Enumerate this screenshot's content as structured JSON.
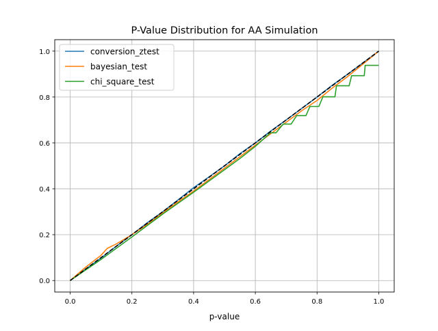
{
  "chart_data": {
    "type": "line",
    "title": "P-Value Distribution for AA Simulation",
    "xlabel": "p-value",
    "ylabel": "",
    "xlim": [
      -0.05,
      1.05
    ],
    "ylim": [
      -0.05,
      1.05
    ],
    "xticks": [
      "0.0",
      "0.2",
      "0.4",
      "0.6",
      "0.8",
      "1.0"
    ],
    "yticks": [
      "0.0",
      "0.2",
      "0.4",
      "0.6",
      "0.8",
      "1.0"
    ],
    "grid": true,
    "legend_position": "upper-left",
    "series": [
      {
        "name": "conversion_ztest",
        "color": "#1f77b4",
        "points": [
          [
            0,
            0
          ],
          [
            0.05,
            0.05
          ],
          [
            0.1,
            0.098
          ],
          [
            0.15,
            0.15
          ],
          [
            0.2,
            0.2
          ],
          [
            0.25,
            0.252
          ],
          [
            0.3,
            0.3
          ],
          [
            0.35,
            0.352
          ],
          [
            0.4,
            0.405
          ],
          [
            0.45,
            0.452
          ],
          [
            0.5,
            0.5
          ],
          [
            0.55,
            0.553
          ],
          [
            0.6,
            0.6
          ],
          [
            0.65,
            0.652
          ],
          [
            0.7,
            0.7
          ],
          [
            0.75,
            0.75
          ],
          [
            0.8,
            0.8
          ],
          [
            0.85,
            0.852
          ],
          [
            0.9,
            0.9
          ],
          [
            0.95,
            0.95
          ],
          [
            1.0,
            1.0
          ]
        ]
      },
      {
        "name": "bayesian_test",
        "color": "#ff7f0e",
        "points": [
          [
            0,
            0
          ],
          [
            0.05,
            0.058
          ],
          [
            0.1,
            0.11
          ],
          [
            0.12,
            0.14
          ],
          [
            0.15,
            0.16
          ],
          [
            0.2,
            0.2
          ],
          [
            0.25,
            0.245
          ],
          [
            0.3,
            0.295
          ],
          [
            0.35,
            0.343
          ],
          [
            0.4,
            0.39
          ],
          [
            0.45,
            0.44
          ],
          [
            0.5,
            0.49
          ],
          [
            0.55,
            0.54
          ],
          [
            0.6,
            0.59
          ],
          [
            0.65,
            0.64
          ],
          [
            0.7,
            0.69
          ],
          [
            0.75,
            0.74
          ],
          [
            0.8,
            0.785
          ],
          [
            0.85,
            0.84
          ],
          [
            0.9,
            0.89
          ],
          [
            0.95,
            0.945
          ],
          [
            1.0,
            1.0
          ]
        ]
      },
      {
        "name": "chi_square_test",
        "color": "#2ca02c",
        "points": [
          [
            0,
            0
          ],
          [
            0.1,
            0.092
          ],
          [
            0.2,
            0.19
          ],
          [
            0.3,
            0.29
          ],
          [
            0.4,
            0.385
          ],
          [
            0.5,
            0.483
          ],
          [
            0.55,
            0.532
          ],
          [
            0.6,
            0.585
          ],
          [
            0.649,
            0.644
          ],
          [
            0.667,
            0.644
          ],
          [
            0.69,
            0.682
          ],
          [
            0.716,
            0.682
          ],
          [
            0.734,
            0.719
          ],
          [
            0.764,
            0.719
          ],
          [
            0.777,
            0.759
          ],
          [
            0.806,
            0.759
          ],
          [
            0.819,
            0.801
          ],
          [
            0.858,
            0.801
          ],
          [
            0.863,
            0.849
          ],
          [
            0.904,
            0.849
          ],
          [
            0.912,
            0.893
          ],
          [
            0.953,
            0.893
          ],
          [
            0.956,
            0.938
          ],
          [
            1.0,
            0.938
          ]
        ]
      }
    ],
    "reference_line": {
      "style": "dashed",
      "color": "#000000",
      "points": [
        [
          0,
          0
        ],
        [
          1,
          1
        ]
      ]
    }
  }
}
